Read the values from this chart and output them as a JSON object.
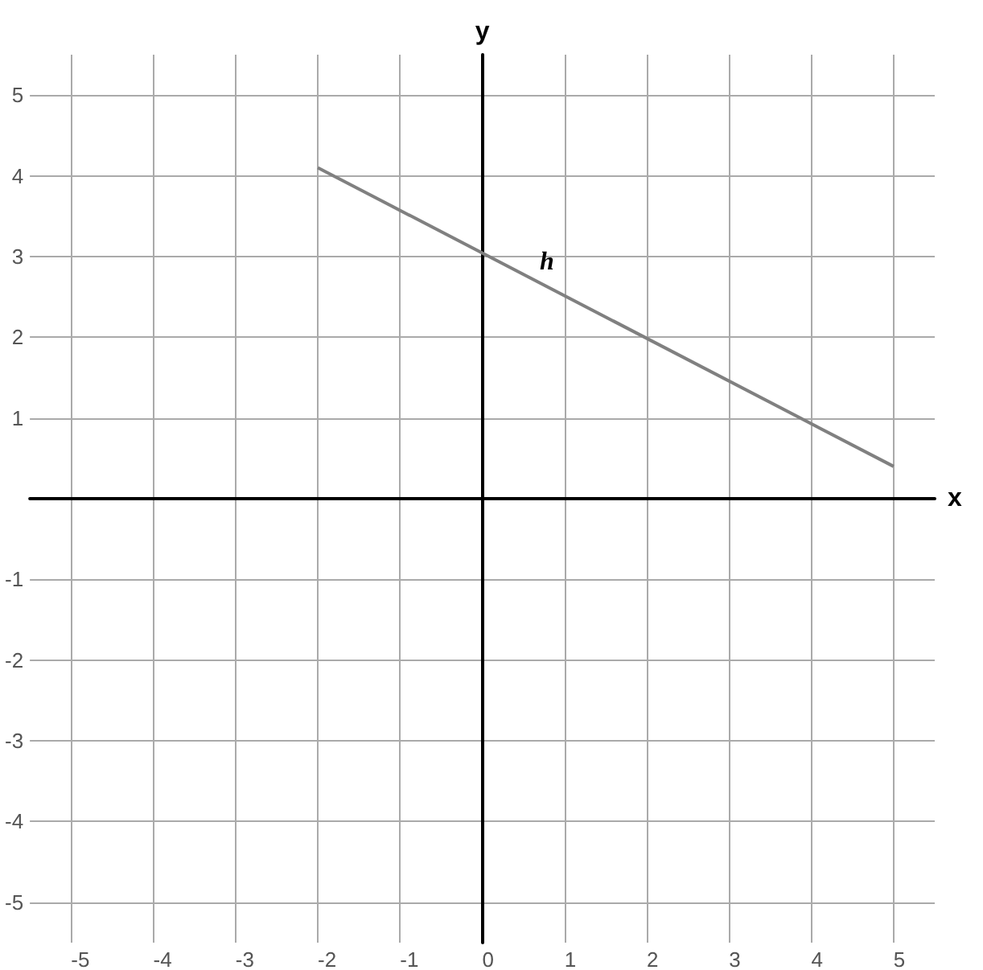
{
  "chart_data": {
    "type": "line",
    "xlabel": "x",
    "ylabel": "y",
    "x": [
      -2,
      5
    ],
    "series": [
      {
        "color": "#808080",
        "values": [
          4.1,
          0.4
        ]
      }
    ],
    "xlim": [
      -5.5,
      5.5
    ],
    "ylim": [
      -5.5,
      5.5
    ],
    "xticks": [
      -5,
      -4,
      -3,
      -2,
      -1,
      0,
      1,
      2,
      3,
      4,
      5
    ],
    "yticks": [
      -5,
      -4,
      -3,
      -2,
      -1,
      1,
      2,
      3,
      4,
      5
    ],
    "grid": true,
    "marker": "none",
    "line_style": "solid",
    "annotations": [
      "h"
    ]
  }
}
